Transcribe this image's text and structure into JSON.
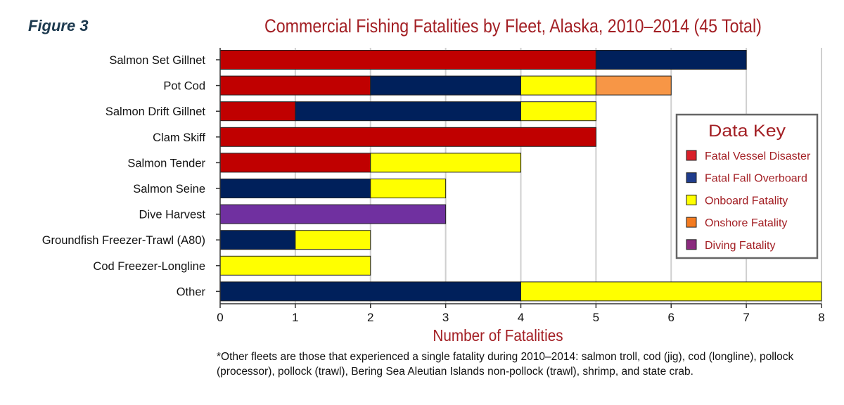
{
  "figure_label": "Figure 3",
  "footnote": "*Other fleets are those that experienced a single fatality during 2010–2014: salmon troll, cod (jig), cod (longline), pollock (processor), pollock (trawl), Bering Sea Aleutian Islands non-pollock (trawl), shrimp, and state crab.",
  "chart_data": {
    "type": "bar",
    "orientation": "horizontal",
    "stacked": true,
    "title": "Commercial Fishing Fatalities by Fleet, Alaska, 2010–2014 (45 Total)",
    "xlabel": "Number of Fatalities",
    "ylabel": "",
    "xlim": [
      0,
      8
    ],
    "xticks": [
      "0",
      "1",
      "2",
      "3",
      "4",
      "5",
      "6",
      "7",
      "8"
    ],
    "grid": "vertical",
    "legend_title": "Data Key",
    "legend_position": "right",
    "categories": [
      "Salmon Set Gillnet",
      "Pot Cod",
      "Salmon Drift Gillnet",
      "Clam Skiff",
      "Salmon Tender",
      "Salmon Seine",
      "Dive Harvest",
      "Groundfish Freezer-Trawl (A80)",
      "Cod Freezer-Longline",
      "Other"
    ],
    "series": [
      {
        "name": "Fatal Vessel Disaster",
        "color": "#c00000",
        "legend_color": "#d9202a",
        "values": [
          5,
          2,
          1,
          5,
          2,
          0,
          0,
          0,
          0,
          0
        ]
      },
      {
        "name": "Fatal Fall Overboard",
        "color": "#00205b",
        "legend_color": "#1f3c8c",
        "values": [
          2,
          2,
          3,
          0,
          0,
          2,
          0,
          1,
          0,
          4
        ]
      },
      {
        "name": "Onboard Fatality",
        "color": "#ffff00",
        "legend_color": "#ffff00",
        "values": [
          0,
          1,
          1,
          0,
          2,
          1,
          0,
          1,
          2,
          4
        ]
      },
      {
        "name": "Onshore Fatality",
        "color": "#f79646",
        "legend_color": "#f47b20",
        "values": [
          0,
          1,
          0,
          0,
          0,
          0,
          0,
          0,
          0,
          0
        ]
      },
      {
        "name": "Diving Fatality",
        "color": "#7030a0",
        "legend_color": "#8b2b7e",
        "values": [
          0,
          0,
          0,
          0,
          0,
          0,
          3,
          0,
          0,
          0
        ]
      }
    ]
  }
}
